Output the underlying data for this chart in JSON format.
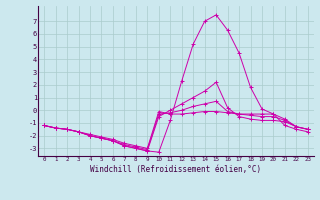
{
  "xlabel": "Windchill (Refroidissement éolien,°C)",
  "bg_color": "#cce8ee",
  "line_color": "#cc00aa",
  "grid_color": "#aacccc",
  "xlim": [
    -0.5,
    23.5
  ],
  "ylim": [
    -3.6,
    8.2
  ],
  "yticks": [
    -3,
    -2,
    -1,
    0,
    1,
    2,
    3,
    4,
    5,
    6,
    7
  ],
  "xticks": [
    0,
    1,
    2,
    3,
    4,
    5,
    6,
    7,
    8,
    9,
    10,
    11,
    12,
    13,
    14,
    15,
    16,
    17,
    18,
    19,
    20,
    21,
    22,
    23
  ],
  "x": [
    0,
    1,
    2,
    3,
    4,
    5,
    6,
    7,
    8,
    9,
    10,
    11,
    12,
    13,
    14,
    15,
    16,
    17,
    18,
    19,
    20,
    21,
    22,
    23
  ],
  "series": [
    [
      -1.2,
      -1.4,
      -1.5,
      -1.7,
      -2.0,
      -2.2,
      -2.4,
      -2.8,
      -3.0,
      -3.2,
      -3.3,
      -0.8,
      2.3,
      5.2,
      7.0,
      7.5,
      6.3,
      4.5,
      1.8,
      0.1,
      -0.3,
      -1.2,
      -1.5,
      -1.7
    ],
    [
      -1.2,
      -1.4,
      -1.5,
      -1.7,
      -2.0,
      -2.2,
      -2.4,
      -2.8,
      -3.0,
      -3.2,
      -0.5,
      0.0,
      0.5,
      1.0,
      1.5,
      2.2,
      0.2,
      -0.5,
      -0.7,
      -0.8,
      -0.8,
      -0.9,
      -1.3,
      -1.5
    ],
    [
      -1.2,
      -1.4,
      -1.5,
      -1.7,
      -2.0,
      -2.2,
      -2.4,
      -2.7,
      -2.9,
      -3.1,
      -0.3,
      -0.2,
      0.0,
      0.3,
      0.5,
      0.7,
      -0.1,
      -0.3,
      -0.4,
      -0.5,
      -0.5,
      -0.8,
      -1.3,
      -1.5
    ],
    [
      -1.2,
      -1.4,
      -1.5,
      -1.7,
      -1.9,
      -2.1,
      -2.3,
      -2.6,
      -2.8,
      -3.0,
      -0.1,
      -0.3,
      -0.3,
      -0.2,
      -0.1,
      -0.1,
      -0.2,
      -0.3,
      -0.3,
      -0.3,
      -0.3,
      -0.7,
      -1.3,
      -1.5
    ]
  ]
}
